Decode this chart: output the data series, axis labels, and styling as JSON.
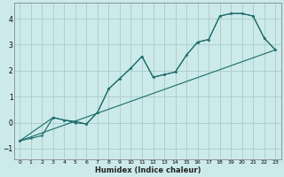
{
  "xlabel": "Humidex (Indice chaleur)",
  "bg_color": "#cceaea",
  "grid_color": "#aacccc",
  "line_color": "#1a6b6b",
  "xlim": [
    -0.5,
    23.5
  ],
  "ylim": [
    -1.4,
    4.6
  ],
  "xticks": [
    0,
    1,
    2,
    3,
    4,
    5,
    6,
    7,
    8,
    9,
    10,
    11,
    12,
    13,
    14,
    15,
    16,
    17,
    18,
    19,
    20,
    21,
    22,
    23
  ],
  "yticks": [
    -1,
    0,
    1,
    2,
    3,
    4
  ],
  "series1_x": [
    0,
    1,
    2,
    3,
    4,
    5,
    6,
    7,
    8,
    9,
    10,
    11,
    12,
    13,
    14,
    15,
    16,
    17,
    18,
    19,
    20,
    21,
    22,
    23
  ],
  "series1_y": [
    -0.7,
    -0.6,
    -0.5,
    0.2,
    0.1,
    0.05,
    -0.05,
    0.4,
    1.3,
    1.7,
    2.1,
    2.55,
    1.75,
    1.85,
    1.95,
    2.6,
    3.1,
    3.2,
    4.1,
    4.2,
    4.2,
    4.1,
    3.25,
    2.8
  ],
  "series2_x": [
    0,
    3,
    4,
    5,
    6,
    7,
    8,
    9,
    10,
    11,
    12,
    13,
    14,
    15,
    16,
    17,
    18,
    19,
    20,
    21,
    22,
    23
  ],
  "series2_y": [
    -0.7,
    0.2,
    0.1,
    0.0,
    -0.05,
    0.4,
    1.3,
    1.7,
    2.1,
    2.55,
    1.75,
    1.85,
    1.95,
    2.6,
    3.1,
    3.2,
    4.1,
    4.2,
    4.2,
    4.1,
    3.25,
    2.8
  ],
  "series3_x": [
    0,
    23
  ],
  "series3_y": [
    -0.7,
    2.8
  ]
}
